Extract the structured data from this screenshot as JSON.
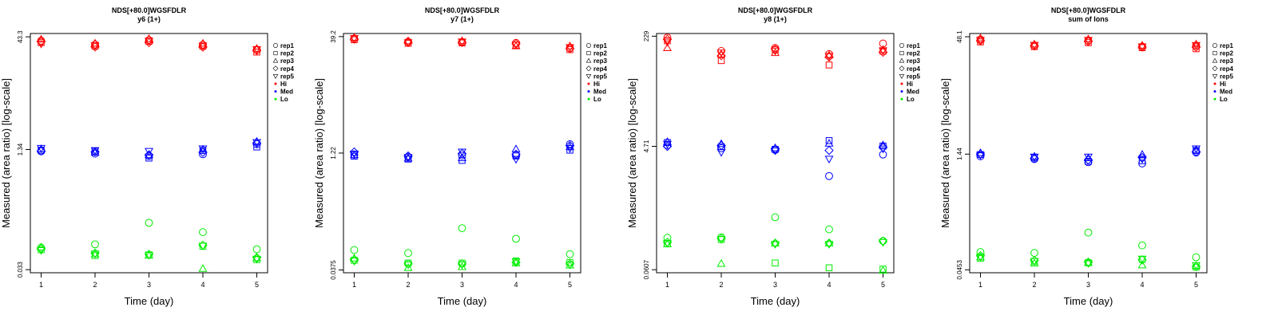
{
  "chart_data": [
    {
      "type": "scatter",
      "title": "NDS[+80.0]WGSFDLR",
      "subtitle": "y6 (1+)",
      "xlabel": "Time (day)",
      "ylabel": "Measured (area ratio) [log-scale]",
      "yscale": "log",
      "ylim": [
        0.03,
        48
      ],
      "ytick_labels": [
        "0.033",
        "1.34",
        "43.3"
      ],
      "ytick_values": [
        0.033,
        1.34,
        43.3
      ],
      "xticks": [
        1,
        2,
        3,
        4,
        5
      ],
      "series": [
        {
          "name": "Hi",
          "color": "#ff0000",
          "points": {
            "rep1": [
              38.4,
              34.1,
              39.2,
              33.8,
              29.0
            ],
            "rep2": [
              36.3,
              32.6,
              37.7,
              32.5,
              27.1
            ],
            "rep3": [
              39.9,
              35.3,
              40.7,
              35.2,
              30.1
            ],
            "rep4": [
              37.3,
              31.7,
              36.3,
              31.5,
              28.6
            ],
            "rep5": [
              35.0,
              33.3,
              38.3,
              33.1,
              29.6
            ]
          }
        },
        {
          "name": "Med",
          "color": "#0000ff",
          "points": {
            "rep1": [
              1.27,
              1.18,
              1.1,
              1.16,
              1.58
            ],
            "rep2": [
              1.31,
              1.28,
              1.03,
              1.3,
              1.45
            ],
            "rep3": [
              1.36,
              1.22,
              1.13,
              1.34,
              1.71
            ],
            "rep4": [
              1.28,
              1.25,
              1.14,
              1.23,
              1.64
            ],
            "rep5": [
              1.4,
              1.31,
              1.28,
              1.38,
              1.68
            ]
          }
        },
        {
          "name": "Lo",
          "color": "#00ee00",
          "points": {
            "rep1": [
              0.065,
              0.072,
              0.14,
              0.105,
              0.062
            ],
            "rep2": [
              0.061,
              0.051,
              0.052,
              0.068,
              0.045
            ],
            "rep3": [
              0.066,
              0.053,
              0.051,
              0.034,
              0.047
            ],
            "rep4": [
              0.063,
              0.055,
              0.053,
              0.07,
              0.048
            ],
            "rep5": [
              0.06,
              0.054,
              0.052,
              0.069,
              0.046
            ]
          }
        }
      ]
    },
    {
      "type": "scatter",
      "title": "NDS[+80.0]WGSFDLR",
      "subtitle": "y7 (1+)",
      "xlabel": "Time (day)",
      "ylabel": "Measured (area ratio) [log-scale]",
      "yscale": "log",
      "ylim": [
        0.0345,
        43
      ],
      "ytick_labels": [
        "0.0375",
        "1.22",
        "39.2"
      ],
      "ytick_values": [
        0.0375,
        1.22,
        39.2
      ],
      "xticks": [
        1,
        2,
        3,
        4,
        5
      ],
      "series": [
        {
          "name": "Hi",
          "color": "#ff0000",
          "points": {
            "rep1": [
              37.0,
              33.6,
              33.3,
              32.5,
              28.0
            ],
            "rep2": [
              35.7,
              32.1,
              32.5,
              30.4,
              26.6
            ],
            "rep3": [
              38.0,
              34.4,
              34.4,
              29.5,
              29.5
            ],
            "rep4": [
              36.3,
              32.9,
              32.9,
              31.7,
              27.3
            ],
            "rep5": [
              37.3,
              33.0,
              33.8,
              30.8,
              28.5
            ]
          }
        },
        {
          "name": "Med",
          "color": "#0000ff",
          "points": {
            "rep1": [
              1.16,
              1.09,
              1.13,
              1.15,
              1.59
            ],
            "rep2": [
              1.11,
              1.02,
              0.98,
              1.12,
              1.33
            ],
            "rep3": [
              1.15,
              1.04,
              1.05,
              1.37,
              1.46
            ],
            "rep4": [
              1.26,
              1.12,
              1.2,
              1.18,
              1.52
            ],
            "rep5": [
              1.2,
              1.08,
              1.27,
              1.02,
              1.41
            ]
          }
        },
        {
          "name": "Lo",
          "color": "#00ee00",
          "points": {
            "rep1": [
              0.068,
              0.062,
              0.13,
              0.095,
              0.06
            ],
            "rep2": [
              0.05,
              0.046,
              0.046,
              0.049,
              0.047
            ],
            "rep3": [
              0.053,
              0.04,
              0.041,
              0.046,
              0.043
            ],
            "rep4": [
              0.051,
              0.045,
              0.045,
              0.047,
              0.045
            ],
            "rep5": [
              0.049,
              0.044,
              0.044,
              0.048,
              0.044
            ]
          }
        }
      ]
    },
    {
      "type": "scatter",
      "title": "NDS[+80.0]WGSFDLR",
      "subtitle": "y8 (1+)",
      "xlabel": "Time (day)",
      "ylabel": "Measured (area ratio) [log-scale]",
      "yscale": "log",
      "ylim": [
        0.0545,
        252
      ],
      "ytick_labels": [
        "0.0607",
        "4.71",
        "229"
      ],
      "ytick_values": [
        0.0607,
        4.71,
        229
      ],
      "xticks": [
        1,
        2,
        3,
        4,
        5
      ],
      "series": [
        {
          "name": "Hi",
          "color": "#ff0000",
          "points": {
            "rep1": [
              218.0,
              136.0,
              151.0,
              122.0,
              177.0
            ],
            "rep2": [
              195.0,
              97.0,
              142.0,
              83.0,
              135.0
            ],
            "rep3": [
              151.0,
              121.0,
              127.0,
              117.0,
              142.0
            ],
            "rep4": [
              205.0,
              115.0,
              145.0,
              110.0,
              130.0
            ],
            "rep5": [
              188.0,
              128.0,
              137.0,
              114.0,
              139.0
            ]
          }
        },
        {
          "name": "Med",
          "color": "#0000ff",
          "points": {
            "rep1": [
              4.9,
              4.41,
              4.13,
              1.65,
              3.53
            ],
            "rep2": [
              5.39,
              4.65,
              4.24,
              5.76,
              4.76
            ],
            "rep3": [
              5.5,
              5.12,
              4.43,
              5.2,
              4.92
            ],
            "rep4": [
              4.7,
              4.85,
              4.3,
              4.08,
              4.52
            ],
            "rep5": [
              5.12,
              3.83,
              4.06,
              3.03,
              4.34
            ]
          }
        },
        {
          "name": "Lo",
          "color": "#00ee00",
          "points": {
            "rep1": [
              0.187,
              0.19,
              0.386,
              0.252,
              0.167
            ],
            "rep2": [
              0.151,
              0.176,
              0.077,
              0.065,
              0.062
            ],
            "rep3": [
              0.15,
              0.075,
              0.154,
              0.154,
              0.059
            ],
            "rep4": [
              0.16,
              0.182,
              0.155,
              0.155,
              0.166
            ],
            "rep5": [
              0.155,
              0.178,
              0.15,
              0.15,
              0.16
            ]
          }
        }
      ]
    },
    {
      "type": "scatter",
      "title": "NDS[+80.0]WGSFDLR",
      "subtitle": "sum of Ions",
      "xlabel": "Time (day)",
      "ylabel": "Measured (area ratio) [log-scale]",
      "yscale": "log",
      "ylim": [
        0.0415,
        53
      ],
      "ytick_labels": [
        "0.0453",
        "1.44",
        "48.1"
      ],
      "ytick_values": [
        0.0453,
        1.44,
        48.1
      ],
      "xticks": [
        1,
        2,
        3,
        4,
        5
      ],
      "series": [
        {
          "name": "Hi",
          "color": "#ff0000",
          "points": {
            "rep1": [
              44.3,
              37.0,
              42.9,
              35.8,
              36.9
            ],
            "rep2": [
              41.2,
              35.8,
              40.3,
              34.7,
              33.6
            ],
            "rep3": [
              46.0,
              38.4,
              44.7,
              37.0,
              38.3
            ],
            "rep4": [
              42.5,
              36.5,
              41.7,
              35.3,
              35.2
            ],
            "rep5": [
              43.6,
              37.6,
              43.6,
              35.9,
              37.4
            ]
          }
        },
        {
          "name": "Med",
          "color": "#0000ff",
          "points": {
            "rep1": [
              1.35,
              1.24,
              1.13,
              1.09,
              1.51
            ],
            "rep2": [
              1.42,
              1.3,
              1.16,
              1.18,
              1.6
            ],
            "rep3": [
              1.49,
              1.34,
              1.28,
              1.42,
              1.64
            ],
            "rep4": [
              1.44,
              1.27,
              1.21,
              1.3,
              1.55
            ],
            "rep5": [
              1.4,
              1.33,
              1.33,
              1.25,
              1.7
            ]
          }
        },
        {
          "name": "Lo",
          "color": "#00ee00",
          "points": {
            "rep1": [
              0.077,
              0.075,
              0.138,
              0.094,
              0.066
            ],
            "rep2": [
              0.064,
              0.058,
              0.056,
              0.062,
              0.049
            ],
            "rep3": [
              0.066,
              0.055,
              0.056,
              0.052,
              0.051
            ],
            "rep4": [
              0.069,
              0.06,
              0.057,
              0.061,
              0.05
            ],
            "rep5": [
              0.067,
              0.059,
              0.055,
              0.063,
              0.052
            ]
          }
        }
      ]
    }
  ],
  "legend": {
    "placement": "right",
    "entries": [
      {
        "label": "rep1",
        "marker": "circle"
      },
      {
        "label": "rep2",
        "marker": "square"
      },
      {
        "label": "rep3",
        "marker": "triangle-up"
      },
      {
        "label": "rep4",
        "marker": "diamond"
      },
      {
        "label": "rep5",
        "marker": "triangle-down"
      },
      {
        "label": "Hi",
        "marker": "dot",
        "color": "#ff0000"
      },
      {
        "label": "Med",
        "marker": "dot",
        "color": "#0000ff"
      },
      {
        "label": "Lo",
        "marker": "dot",
        "color": "#00ee00"
      }
    ]
  }
}
